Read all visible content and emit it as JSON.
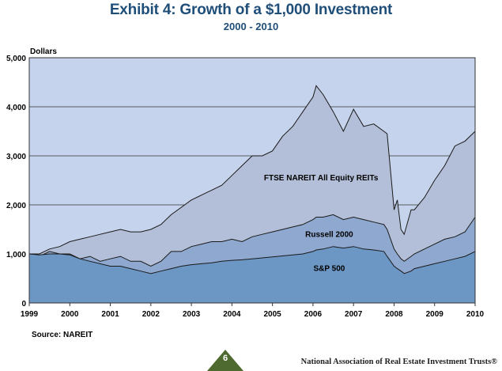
{
  "header": {
    "title": "Exhibit 4: Growth of a $1,000 Investment",
    "subtitle": "2000 - 2010"
  },
  "footer": {
    "source": "Source: NAREIT",
    "page_number": "6",
    "organization": "National Association of Real Estate Investment Trusts®"
  },
  "colors": {
    "plot_background": "#c5d3ec",
    "reits_fill": "#b3bfd8",
    "russell_fill": "#8ea8cf",
    "sp_fill": "#6c97c4",
    "badge": "#4f6a31",
    "title": "#1f4e79"
  },
  "chart_data": {
    "type": "area",
    "title": "Exhibit 4: Growth of a $1,000 Investment",
    "subtitle": "2000 - 2010",
    "ylabel": "Dollars",
    "xlabel": "",
    "ylim": [
      0,
      5000
    ],
    "xlim": [
      1999,
      2010
    ],
    "yticks": [
      "0",
      "1,000",
      "2,000",
      "3,000",
      "4,000",
      "5,000"
    ],
    "xticks": [
      "1999",
      "2000",
      "2001",
      "2002",
      "2003",
      "2004",
      "2005",
      "2006",
      "2007",
      "2008",
      "2009",
      "2010"
    ],
    "grid": true,
    "x": [
      1999,
      1999.25,
      1999.5,
      1999.75,
      2000,
      2000.25,
      2000.5,
      2000.75,
      2001,
      2001.25,
      2001.5,
      2001.75,
      2002,
      2002.25,
      2002.5,
      2002.75,
      2003,
      2003.25,
      2003.5,
      2003.75,
      2004,
      2004.25,
      2004.5,
      2004.75,
      2005,
      2005.25,
      2005.5,
      2005.75,
      2006,
      2006.08,
      2006.25,
      2006.5,
      2006.75,
      2007,
      2007.25,
      2007.5,
      2007.75,
      2007.83,
      2008,
      2008.08,
      2008.17,
      2008.25,
      2008.42,
      2008.5,
      2008.75,
      2009,
      2009.25,
      2009.5,
      2009.75,
      2010
    ],
    "series": [
      {
        "name": "FTSE NAREIT All Equity REITs",
        "label": "FTSE NAREIT All Equity REITs",
        "values": [
          1000,
          1000,
          1100,
          1150,
          1250,
          1300,
          1350,
          1400,
          1450,
          1500,
          1450,
          1450,
          1500,
          1600,
          1800,
          1950,
          2100,
          2200,
          2300,
          2400,
          2600,
          2800,
          3000,
          3000,
          3100,
          3400,
          3600,
          3900,
          4200,
          4430,
          4250,
          3900,
          3500,
          3950,
          3600,
          3650,
          3500,
          3450,
          1900,
          2100,
          1500,
          1400,
          1900,
          1900,
          2150,
          2500,
          2800,
          3200,
          3300,
          3500
        ]
      },
      {
        "name": "Russell 2000",
        "label": "Russell 2000",
        "values": [
          1000,
          950,
          1050,
          1000,
          1000,
          900,
          950,
          850,
          900,
          950,
          850,
          850,
          750,
          850,
          1050,
          1050,
          1150,
          1200,
          1250,
          1250,
          1300,
          1250,
          1350,
          1400,
          1450,
          1500,
          1550,
          1600,
          1700,
          1750,
          1750,
          1800,
          1700,
          1750,
          1700,
          1650,
          1600,
          1500,
          1100,
          1000,
          900,
          850,
          950,
          1000,
          1100,
          1200,
          1300,
          1350,
          1450,
          1750
        ]
      },
      {
        "name": "S&P 500",
        "label": "S&P 500",
        "values": [
          1000,
          980,
          1000,
          1000,
          980,
          900,
          850,
          800,
          750,
          750,
          700,
          650,
          600,
          650,
          700,
          750,
          780,
          800,
          820,
          850,
          870,
          880,
          900,
          920,
          940,
          960,
          980,
          1000,
          1050,
          1080,
          1100,
          1150,
          1120,
          1150,
          1100,
          1080,
          1050,
          950,
          750,
          700,
          650,
          600,
          650,
          700,
          750,
          800,
          850,
          900,
          950,
          1050
        ]
      }
    ]
  }
}
